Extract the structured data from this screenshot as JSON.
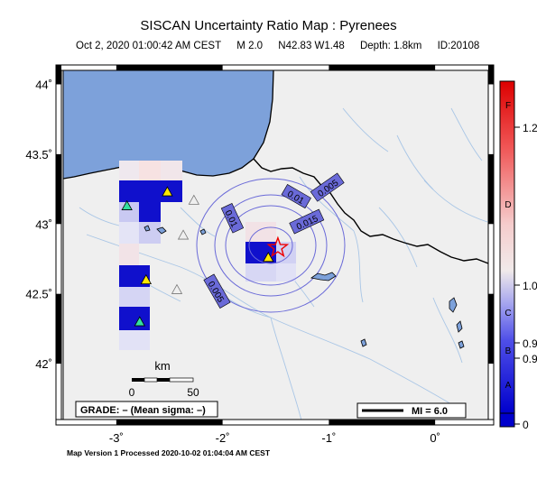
{
  "header": {
    "title": "SISCAN Uncertainty Ratio Map : Pyrenees",
    "date": "Oct  2, 2020 01:00:42 AM CEST",
    "magnitude": "M 2.0",
    "location": "N42.83 W1.48",
    "depth": "Depth: 1.8km",
    "event_id": "ID:20108"
  },
  "map": {
    "lon_range": [
      -3.5,
      0.5
    ],
    "lat_range": [
      41.6,
      44.1
    ],
    "x_ticks": [
      {
        "value": -3,
        "label": "-3˚"
      },
      {
        "value": -2,
        "label": "-2˚"
      },
      {
        "value": -1,
        "label": "-1˚"
      },
      {
        "value": 0,
        "label": "0˚"
      }
    ],
    "y_ticks": [
      {
        "value": 44,
        "label": "44˚"
      },
      {
        "value": 43.5,
        "label": "43.5˚"
      },
      {
        "value": 43,
        "label": "43˚"
      },
      {
        "value": 42.5,
        "label": "42.5˚"
      },
      {
        "value": 42,
        "label": "42˚"
      }
    ],
    "contour_labels": [
      "0.01",
      "0.005",
      "0.01",
      "0.015",
      "0.005"
    ],
    "epicenter": {
      "lon": -1.48,
      "lat": 42.83
    },
    "stations_active": [
      {
        "lon": -2.52,
        "lat": 43.23
      },
      {
        "lon": -2.9,
        "lat": 43.13
      },
      {
        "lon": -2.72,
        "lat": 42.6
      },
      {
        "lon": -2.78,
        "lat": 42.3
      },
      {
        "lon": -1.57,
        "lat": 42.76
      }
    ],
    "stations_inactive": [
      {
        "lon": -2.27,
        "lat": 43.17
      },
      {
        "lon": -2.37,
        "lat": 42.92
      },
      {
        "lon": -2.43,
        "lat": 42.53
      }
    ]
  },
  "scale_bar": {
    "unit": "km",
    "start": "0",
    "end": "50"
  },
  "grade_box": {
    "text": "GRADE: – (Mean sigma: –)"
  },
  "mi_legend": {
    "label": "MI = 6.0"
  },
  "colorbar": {
    "labels": [
      "1.2",
      "1.0",
      "0.9",
      "0.9",
      "0"
    ],
    "grades": [
      "F",
      "D",
      "C",
      "B",
      "A"
    ]
  },
  "colors": {
    "sea": "#7da1da",
    "land": "#efefef",
    "contour": "#6a6ad8",
    "river": "#a9c6e6",
    "grid_high": "#1010cc"
  },
  "footer": {
    "text": "Map Version 1 Processed 2020-10-02 01:04:04 AM CEST"
  }
}
